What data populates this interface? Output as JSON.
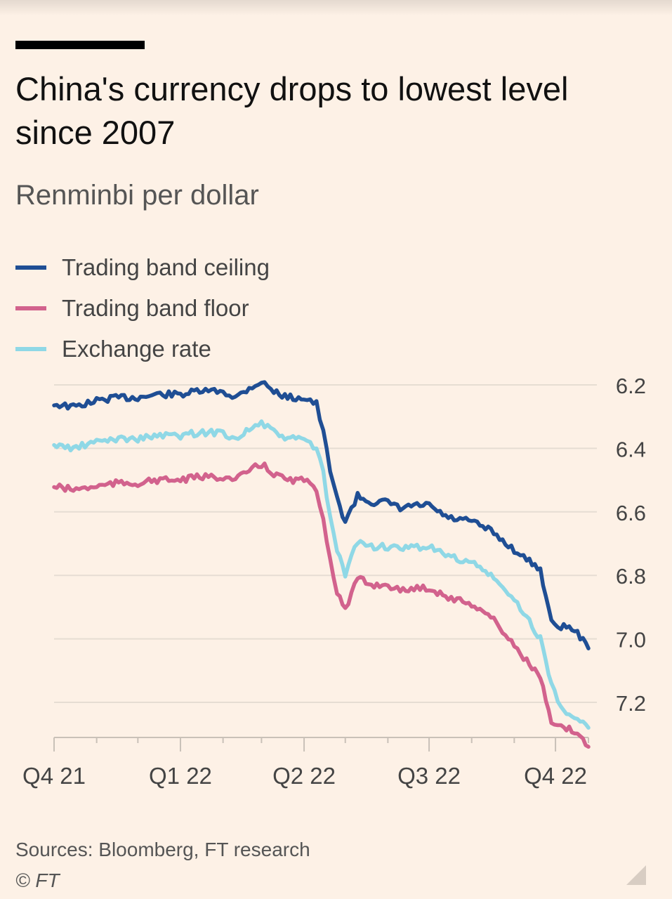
{
  "header": {
    "title": "China's currency drops to lowest level since 2007",
    "subtitle": "Renminbi per dollar"
  },
  "footer": {
    "source": "Sources: Bloomberg, FT research",
    "copyright": "© FT"
  },
  "colors": {
    "ceiling": "#1f4e94",
    "floor": "#d2628d",
    "exchange": "#8fd8e6",
    "grid": "#e6ddd3",
    "axis": "#c9c1b8"
  },
  "chart_data": {
    "type": "line",
    "title": "China's currency drops to lowest level since 2007",
    "ylabel": "Renminbi per dollar",
    "y_inverted": true,
    "ylim": [
      6.2,
      7.3
    ],
    "yticks": [
      6.2,
      6.4,
      6.6,
      6.8,
      7.0,
      7.2
    ],
    "ytick_labels": [
      "6.2",
      "6.4",
      "6.6",
      "6.8",
      "7.0",
      "7.2"
    ],
    "xlim": [
      "2021-10-01",
      "2022-10-25"
    ],
    "xticks": [
      {
        "date": "2021-10-01",
        "label": "Q4 21"
      },
      {
        "date": "2022-01-01",
        "label": "Q1 22"
      },
      {
        "date": "2022-04-01",
        "label": "Q2 22"
      },
      {
        "date": "2022-07-01",
        "label": "Q3 22"
      },
      {
        "date": "2022-10-01",
        "label": "Q4 22"
      }
    ],
    "minor_xticks": [
      "2021-11-01",
      "2021-12-01",
      "2022-02-01",
      "2022-03-01",
      "2022-05-01",
      "2022-06-01",
      "2022-08-01",
      "2022-09-01",
      "2022-10-25"
    ],
    "grid": true,
    "legend_position": "top-left",
    "series": [
      {
        "name": "Trading band ceiling",
        "key": "ceiling",
        "x": [
          "2021-10-01",
          "2021-10-15",
          "2021-11-01",
          "2021-11-15",
          "2021-12-01",
          "2021-12-15",
          "2022-01-01",
          "2022-01-15",
          "2022-02-01",
          "2022-02-10",
          "2022-02-20",
          "2022-03-01",
          "2022-03-10",
          "2022-03-20",
          "2022-04-01",
          "2022-04-10",
          "2022-04-15",
          "2022-04-20",
          "2022-04-25",
          "2022-05-01",
          "2022-05-10",
          "2022-05-20",
          "2022-06-01",
          "2022-06-10",
          "2022-06-20",
          "2022-07-01",
          "2022-07-15",
          "2022-08-01",
          "2022-08-15",
          "2022-09-01",
          "2022-09-10",
          "2022-09-20",
          "2022-09-28",
          "2022-10-05",
          "2022-10-15",
          "2022-10-25"
        ],
        "values": [
          6.26,
          6.27,
          6.25,
          6.24,
          6.24,
          6.23,
          6.23,
          6.22,
          6.22,
          6.24,
          6.21,
          6.19,
          6.22,
          6.24,
          6.24,
          6.26,
          6.35,
          6.47,
          6.56,
          6.63,
          6.55,
          6.57,
          6.57,
          6.59,
          6.58,
          6.58,
          6.62,
          6.63,
          6.66,
          6.72,
          6.75,
          6.78,
          6.95,
          6.96,
          6.97,
          7.03
        ]
      },
      {
        "name": "Trading band floor",
        "key": "floor",
        "x": [
          "2021-10-01",
          "2021-10-15",
          "2021-11-01",
          "2021-11-15",
          "2021-12-01",
          "2021-12-15",
          "2022-01-01",
          "2022-01-15",
          "2022-02-01",
          "2022-02-10",
          "2022-02-20",
          "2022-03-01",
          "2022-03-10",
          "2022-03-20",
          "2022-04-01",
          "2022-04-10",
          "2022-04-15",
          "2022-04-20",
          "2022-04-25",
          "2022-05-01",
          "2022-05-10",
          "2022-05-20",
          "2022-06-01",
          "2022-06-10",
          "2022-06-20",
          "2022-07-01",
          "2022-07-15",
          "2022-08-01",
          "2022-08-15",
          "2022-09-01",
          "2022-09-10",
          "2022-09-20",
          "2022-09-28",
          "2022-10-05",
          "2022-10-15",
          "2022-10-25"
        ],
        "values": [
          6.52,
          6.53,
          6.52,
          6.51,
          6.51,
          6.5,
          6.5,
          6.49,
          6.49,
          6.5,
          6.47,
          6.45,
          6.48,
          6.5,
          6.5,
          6.53,
          6.62,
          6.75,
          6.85,
          6.91,
          6.81,
          6.83,
          6.83,
          6.85,
          6.84,
          6.84,
          6.87,
          6.89,
          6.93,
          7.02,
          7.07,
          7.12,
          7.27,
          7.28,
          7.29,
          7.34
        ]
      },
      {
        "name": "Exchange rate",
        "key": "exchange",
        "x": [
          "2021-10-01",
          "2021-10-15",
          "2021-11-01",
          "2021-11-15",
          "2021-12-01",
          "2021-12-15",
          "2022-01-01",
          "2022-01-15",
          "2022-02-01",
          "2022-02-10",
          "2022-02-20",
          "2022-03-01",
          "2022-03-10",
          "2022-03-20",
          "2022-04-01",
          "2022-04-10",
          "2022-04-15",
          "2022-04-20",
          "2022-04-25",
          "2022-05-01",
          "2022-05-10",
          "2022-05-20",
          "2022-06-01",
          "2022-06-10",
          "2022-06-20",
          "2022-07-01",
          "2022-07-15",
          "2022-08-01",
          "2022-08-15",
          "2022-09-01",
          "2022-09-10",
          "2022-09-20",
          "2022-09-28",
          "2022-10-05",
          "2022-10-15",
          "2022-10-25"
        ],
        "values": [
          6.39,
          6.4,
          6.38,
          6.37,
          6.37,
          6.36,
          6.36,
          6.35,
          6.35,
          6.37,
          6.34,
          6.32,
          6.35,
          6.37,
          6.37,
          6.4,
          6.48,
          6.62,
          6.72,
          6.8,
          6.69,
          6.71,
          6.71,
          6.72,
          6.71,
          6.71,
          6.74,
          6.76,
          6.8,
          6.88,
          6.93,
          7.0,
          7.14,
          7.22,
          7.24,
          7.28
        ]
      }
    ]
  }
}
